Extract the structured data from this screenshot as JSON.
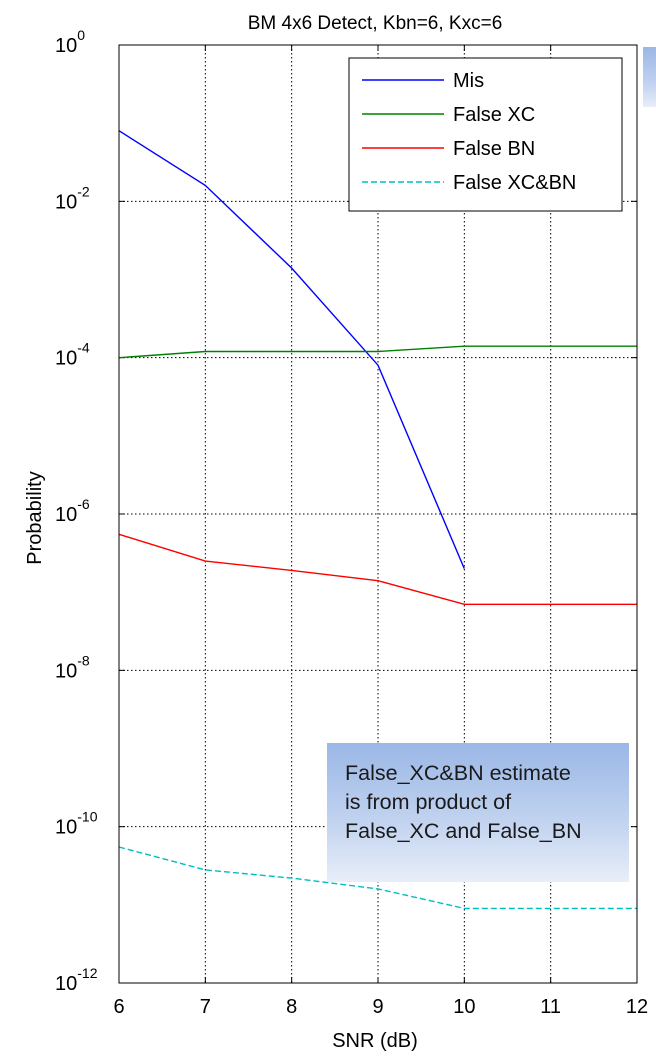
{
  "chart_data": {
    "type": "line",
    "title": "BM 4x6 Detect, Kbn=6, Kxc=6",
    "xlabel": "SNR (dB)",
    "ylabel": "Probability",
    "x": [
      6,
      7,
      8,
      9,
      10,
      11,
      12
    ],
    "xlim": [
      6,
      12
    ],
    "ylim": [
      1e-12,
      1
    ],
    "yscale": "log",
    "grid": true,
    "legend_position": "top-right",
    "x_ticks": [
      "6",
      "7",
      "8",
      "9",
      "10",
      "11",
      "12"
    ],
    "y_ticks": [
      {
        "base": "10",
        "exp": "0"
      },
      {
        "base": "10",
        "exp": "-2"
      },
      {
        "base": "10",
        "exp": "-4"
      },
      {
        "base": "10",
        "exp": "-6"
      },
      {
        "base": "10",
        "exp": "-8"
      },
      {
        "base": "10",
        "exp": "-10"
      },
      {
        "base": "10",
        "exp": "-12"
      }
    ],
    "series": [
      {
        "name": "Mis",
        "color": "#0000ff",
        "dash": "solid",
        "x": [
          6,
          7,
          8,
          9,
          10
        ],
        "values": [
          0.08,
          0.016,
          0.0014,
          8e-05,
          2e-07
        ]
      },
      {
        "name": "False XC",
        "color": "#008000",
        "dash": "solid",
        "x": [
          6,
          7,
          8,
          9,
          10,
          11,
          12
        ],
        "values": [
          0.0001,
          0.00012,
          0.00012,
          0.00012,
          0.00014,
          0.00014,
          0.00014
        ]
      },
      {
        "name": "False BN",
        "color": "#ff0000",
        "dash": "solid",
        "x": [
          6,
          7,
          8,
          9,
          10,
          11,
          12
        ],
        "values": [
          5.5e-07,
          2.5e-07,
          1.9e-07,
          1.4e-07,
          7e-08,
          7e-08,
          7e-08
        ]
      },
      {
        "name": "False XC&BN",
        "color": "#00bfbf",
        "dash": "dashed",
        "x": [
          6,
          7,
          8,
          9,
          10,
          11,
          12
        ],
        "values": [
          5.5e-11,
          2.8e-11,
          2.2e-11,
          1.6e-11,
          9e-12,
          9e-12,
          9e-12
        ]
      }
    ]
  },
  "annotation": {
    "lines": [
      "False_XC&BN estimate",
      "is from product of",
      "False_XC and False_BN"
    ]
  }
}
